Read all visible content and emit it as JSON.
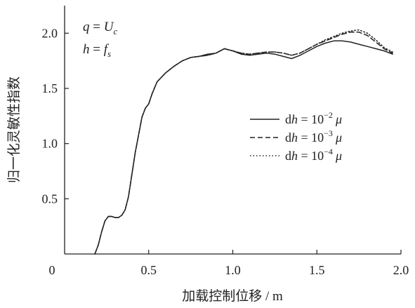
{
  "chart_data": {
    "type": "line",
    "xlabel": "加载控制位移 / m",
    "ylabel": "归一化灵敏性指数",
    "xlim": [
      0,
      2.0
    ],
    "ylim": [
      0,
      2.25
    ],
    "x_ticks": [
      "0",
      "0.5",
      "1.0",
      "1.5",
      "2.0"
    ],
    "y_ticks": [
      "0.5",
      "1.0",
      "1.5",
      "2.0"
    ],
    "x_tick_values": [
      0,
      0.5,
      1.0,
      1.5,
      2.0
    ],
    "y_tick_values": [
      0.5,
      1.0,
      1.5,
      2.0
    ],
    "annotations": {
      "q_lhs": "q",
      "q_eq": " = ",
      "q_rhs": "U",
      "q_sub": "c",
      "h_lhs": "h",
      "h_eq": " = ",
      "h_rhs": "f",
      "h_sub": "s"
    },
    "legend_position": "right",
    "series": [
      {
        "name": "dh = 10^-2 μ",
        "legend_prefix": "d",
        "legend_var": "h",
        "legend_mid": " = 10",
        "legend_exp": "−2",
        "legend_mu": "μ",
        "style": "solid",
        "color": "#222222",
        "x": [
          0.18,
          0.2,
          0.22,
          0.24,
          0.26,
          0.28,
          0.3,
          0.32,
          0.34,
          0.36,
          0.38,
          0.4,
          0.42,
          0.44,
          0.46,
          0.48,
          0.5,
          0.52,
          0.55,
          0.6,
          0.65,
          0.7,
          0.75,
          0.8,
          0.85,
          0.9,
          0.95,
          1.0,
          1.05,
          1.1,
          1.15,
          1.2,
          1.25,
          1.3,
          1.35,
          1.4,
          1.45,
          1.5,
          1.55,
          1.6,
          1.65,
          1.7,
          1.75,
          1.8,
          1.85,
          1.9,
          1.95
        ],
        "y": [
          0.0,
          0.08,
          0.2,
          0.3,
          0.34,
          0.34,
          0.33,
          0.33,
          0.35,
          0.4,
          0.52,
          0.72,
          0.92,
          1.08,
          1.24,
          1.32,
          1.36,
          1.45,
          1.56,
          1.64,
          1.7,
          1.75,
          1.78,
          1.79,
          1.81,
          1.82,
          1.86,
          1.84,
          1.81,
          1.8,
          1.81,
          1.82,
          1.81,
          1.79,
          1.77,
          1.8,
          1.84,
          1.88,
          1.91,
          1.93,
          1.93,
          1.92,
          1.9,
          1.88,
          1.86,
          1.84,
          1.81
        ]
      },
      {
        "name": "dh = 10^-3 μ",
        "legend_prefix": "d",
        "legend_var": "h",
        "legend_mid": " = 10",
        "legend_exp": "−3",
        "legend_mu": "μ",
        "style": "dashed",
        "color": "#222222",
        "x": [
          0.18,
          0.2,
          0.22,
          0.24,
          0.26,
          0.28,
          0.3,
          0.32,
          0.34,
          0.36,
          0.38,
          0.4,
          0.42,
          0.44,
          0.46,
          0.48,
          0.5,
          0.52,
          0.55,
          0.6,
          0.65,
          0.7,
          0.75,
          0.8,
          0.85,
          0.9,
          0.95,
          1.0,
          1.05,
          1.1,
          1.15,
          1.2,
          1.25,
          1.3,
          1.35,
          1.4,
          1.45,
          1.5,
          1.55,
          1.6,
          1.65,
          1.7,
          1.75,
          1.8,
          1.85,
          1.9,
          1.95
        ],
        "y": [
          0.0,
          0.08,
          0.2,
          0.3,
          0.34,
          0.34,
          0.33,
          0.33,
          0.35,
          0.4,
          0.52,
          0.72,
          0.92,
          1.08,
          1.24,
          1.32,
          1.36,
          1.45,
          1.56,
          1.64,
          1.7,
          1.75,
          1.78,
          1.79,
          1.8,
          1.82,
          1.86,
          1.84,
          1.82,
          1.81,
          1.82,
          1.83,
          1.83,
          1.82,
          1.8,
          1.82,
          1.86,
          1.9,
          1.93,
          1.96,
          1.99,
          2.01,
          2.01,
          1.98,
          1.92,
          1.86,
          1.82
        ]
      },
      {
        "name": "dh = 10^-4 μ",
        "legend_prefix": "d",
        "legend_var": "h",
        "legend_mid": " = 10",
        "legend_exp": "−4",
        "legend_mu": "μ",
        "style": "dotted",
        "color": "#222222",
        "x": [
          0.18,
          0.2,
          0.22,
          0.24,
          0.26,
          0.28,
          0.3,
          0.32,
          0.34,
          0.36,
          0.38,
          0.4,
          0.42,
          0.44,
          0.46,
          0.48,
          0.5,
          0.52,
          0.55,
          0.6,
          0.65,
          0.7,
          0.75,
          0.8,
          0.85,
          0.9,
          0.95,
          1.0,
          1.05,
          1.1,
          1.15,
          1.2,
          1.25,
          1.3,
          1.35,
          1.4,
          1.45,
          1.5,
          1.55,
          1.6,
          1.65,
          1.7,
          1.75,
          1.8,
          1.85,
          1.9,
          1.95
        ],
        "y": [
          0.0,
          0.08,
          0.2,
          0.3,
          0.34,
          0.34,
          0.33,
          0.33,
          0.35,
          0.4,
          0.52,
          0.72,
          0.92,
          1.08,
          1.24,
          1.32,
          1.36,
          1.45,
          1.56,
          1.64,
          1.7,
          1.75,
          1.78,
          1.79,
          1.8,
          1.82,
          1.86,
          1.84,
          1.82,
          1.81,
          1.82,
          1.83,
          1.83,
          1.82,
          1.8,
          1.82,
          1.86,
          1.9,
          1.94,
          1.97,
          2.0,
          2.02,
          2.03,
          2.0,
          1.94,
          1.87,
          1.83
        ]
      }
    ]
  }
}
